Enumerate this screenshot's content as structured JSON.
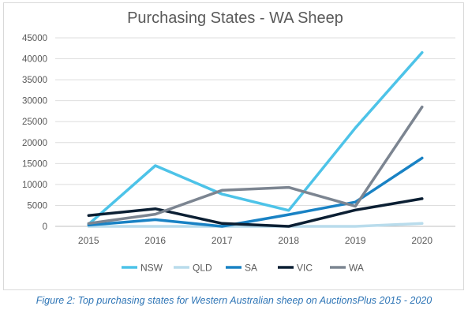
{
  "chart_data": {
    "type": "line",
    "title": "Purchasing States - WA Sheep",
    "xlabel": "",
    "ylabel": "",
    "categories": [
      "2015",
      "2016",
      "2017",
      "2018",
      "2019",
      "2020"
    ],
    "ylim": [
      0,
      45000
    ],
    "yticks": [
      "45000",
      "40000",
      "35000",
      "30000",
      "25000",
      "20000",
      "15000",
      "10000",
      "5000",
      "0"
    ],
    "grid": true,
    "legend_position": "bottom",
    "series": [
      {
        "name": "NSW",
        "color": "#4dc3e8",
        "values": [
          500,
          14500,
          7700,
          3800,
          23500,
          41500
        ]
      },
      {
        "name": "QLD",
        "color": "#b9dcec",
        "values": [
          0,
          0,
          0,
          0,
          0,
          700
        ]
      },
      {
        "name": "SA",
        "color": "#1982c4",
        "values": [
          300,
          1600,
          0,
          2800,
          5800,
          16300
        ]
      },
      {
        "name": "VIC",
        "color": "#0b1f33",
        "values": [
          2600,
          4200,
          700,
          0,
          3900,
          6600
        ]
      },
      {
        "name": "WA",
        "color": "#7c8591",
        "values": [
          700,
          2900,
          8600,
          9300,
          4800,
          28500
        ]
      }
    ]
  },
  "caption": "Figure 2: Top purchasing states for Western Australian sheep on AuctionsPlus 2015 - 2020"
}
